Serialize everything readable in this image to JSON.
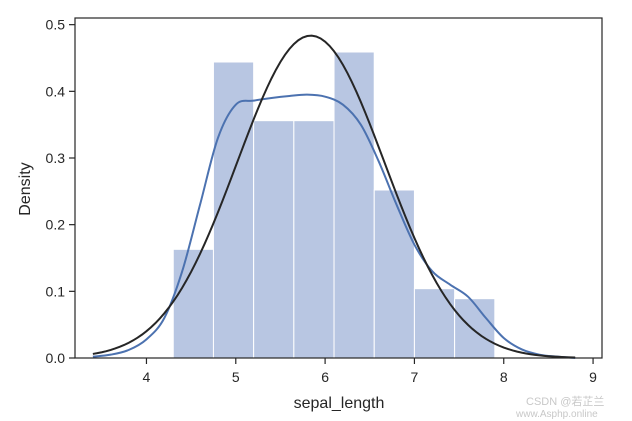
{
  "chart_data": {
    "type": "bar",
    "title": "",
    "xlabel": "sepal_length",
    "ylabel": "Density",
    "xlim": [
      3.2,
      9.1
    ],
    "ylim": [
      0,
      0.51
    ],
    "xticks": [
      4,
      5,
      6,
      7,
      8,
      9
    ],
    "yticks": [
      0.0,
      0.1,
      0.2,
      0.3,
      0.4,
      0.5
    ],
    "ytick_labels": [
      "0.0",
      "0.1",
      "0.2",
      "0.3",
      "0.4",
      "0.5"
    ],
    "grid": false,
    "legend": "none",
    "histogram": {
      "bin_edges": [
        4.3,
        4.75,
        5.2,
        5.65,
        6.1,
        6.55,
        7.0,
        7.45,
        7.9
      ],
      "densities": [
        0.163,
        0.444,
        0.356,
        0.356,
        0.459,
        0.252,
        0.104,
        0.089
      ],
      "color": "#b8c6e2",
      "edge_color": "#ffffff"
    },
    "kde_curve": {
      "color": "#4c72b0",
      "x": [
        3.4,
        3.6,
        3.8,
        4.0,
        4.2,
        4.4,
        4.6,
        4.8,
        5.0,
        5.2,
        5.4,
        5.6,
        5.8,
        6.0,
        6.2,
        6.4,
        6.6,
        6.8,
        7.0,
        7.2,
        7.4,
        7.6,
        7.8,
        8.0,
        8.2,
        8.4,
        8.6,
        8.8
      ],
      "y": [
        0.002,
        0.005,
        0.012,
        0.028,
        0.06,
        0.13,
        0.23,
        0.33,
        0.38,
        0.386,
        0.39,
        0.393,
        0.395,
        0.392,
        0.38,
        0.35,
        0.295,
        0.23,
        0.17,
        0.13,
        0.11,
        0.092,
        0.06,
        0.03,
        0.013,
        0.005,
        0.002,
        0.0
      ]
    },
    "normal_fit_curve": {
      "color": "#262626",
      "mean": 5.84,
      "std": 0.825
    }
  },
  "watermark": {
    "line1": "CSDN @若芷兰",
    "line2": "www.Asphp.online"
  }
}
